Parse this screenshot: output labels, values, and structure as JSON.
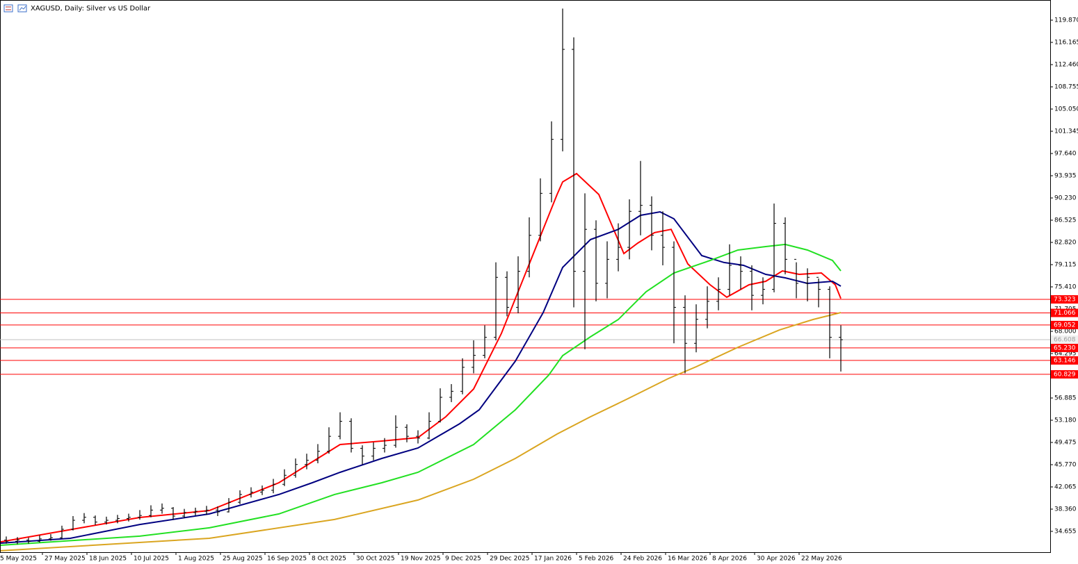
{
  "chart_data": {
    "type": "ohlc",
    "title": "XAGUSD, Daily:  Silver vs US Dollar",
    "bar_color": "#000000",
    "x": [
      3,
      7,
      11,
      15,
      19,
      23,
      27,
      31,
      35,
      39,
      43,
      47,
      51,
      55,
      59,
      63,
      67,
      71,
      75,
      79,
      83,
      87,
      91,
      95,
      99,
      103,
      107,
      111,
      115,
      119,
      123,
      127,
      131,
      135,
      139,
      143,
      147,
      151,
      155,
      159,
      163,
      167,
      171,
      175,
      179,
      183,
      187,
      191,
      195,
      199,
      203,
      207,
      211,
      215,
      219,
      223,
      227,
      231,
      235,
      239,
      243,
      247,
      251,
      255,
      259,
      263,
      267,
      271,
      275,
      279,
      283,
      287,
      291,
      295,
      299,
      303
    ],
    "open": [
      33.2,
      33.0,
      33.2,
      33.0,
      33.4,
      33.6,
      35.0,
      36.5,
      37.0,
      36.2,
      36.5,
      36.8,
      37.0,
      37.3,
      38.2,
      38.5,
      37.2,
      37.8,
      38.0,
      38.2,
      37.9,
      39.5,
      40.8,
      41.2,
      41.5,
      42.5,
      44.0,
      45.8,
      46.5,
      48.0,
      50.5,
      53.0,
      48.5,
      47.2,
      48.5,
      49.0,
      52.0,
      50.5,
      50.2,
      53.0,
      57.0,
      58.0,
      62.0,
      64.0,
      67.0,
      77.0,
      72.0,
      78.0,
      84.0,
      91.0,
      100.0,
      115.0,
      78.0,
      85.0,
      76.0,
      80.0,
      82.0,
      88.0,
      89.0,
      84.0,
      82.0,
      72.0,
      66.0,
      70.0,
      73.0,
      75.0,
      79.0,
      78.0,
      74.0,
      75.0,
      86.0,
      80.0,
      76.0,
      77.0,
      75.0,
      67.0
    ],
    "high": [
      33.8,
      33.7,
      33.6,
      34.0,
      34.2,
      35.6,
      37.2,
      37.7,
      37.3,
      37.1,
      37.4,
      37.6,
      38.2,
      39.0,
      39.3,
      38.7,
      38.4,
      38.6,
      38.9,
      38.8,
      40.2,
      41.5,
      42.0,
      42.3,
      43.4,
      45.0,
      46.8,
      47.6,
      49.2,
      52.0,
      54.5,
      53.5,
      49.0,
      49.5,
      50.2,
      54.0,
      52.5,
      51.5,
      54.5,
      58.5,
      59.2,
      63.5,
      66.5,
      69.0,
      79.5,
      78.0,
      80.5,
      87.0,
      93.5,
      103.0,
      121.8,
      117.0,
      91.0,
      86.5,
      83.0,
      86.0,
      90.0,
      96.4,
      90.5,
      88.0,
      83.0,
      74.0,
      72.5,
      75.5,
      77.0,
      82.5,
      80.5,
      79.0,
      77.0,
      89.3,
      87.0,
      79.5,
      78.5,
      76.8,
      75.5,
      69.0
    ],
    "low": [
      32.6,
      32.5,
      32.6,
      32.8,
      33.1,
      33.4,
      34.8,
      36.0,
      35.7,
      35.8,
      36.0,
      36.3,
      36.6,
      37.0,
      37.6,
      36.6,
      36.9,
      37.3,
      37.4,
      37.2,
      37.8,
      39.2,
      40.3,
      40.7,
      41.0,
      42.2,
      43.6,
      45.0,
      46.0,
      47.6,
      50.0,
      47.8,
      45.8,
      46.5,
      47.8,
      48.6,
      49.5,
      49.3,
      50.0,
      52.8,
      56.2,
      57.5,
      61.0,
      63.5,
      66.5,
      70.5,
      71.0,
      77.0,
      83.0,
      89.5,
      98.0,
      72.0,
      65.0,
      73.0,
      73.5,
      78.0,
      80.0,
      84.0,
      81.5,
      79.0,
      66.0,
      61.0,
      64.5,
      68.5,
      71.5,
      74.0,
      75.0,
      71.5,
      72.5,
      74.5,
      77.5,
      73.5,
      73.0,
      72.0,
      63.5,
      61.3
    ],
    "close": [
      33.0,
      33.2,
      33.0,
      33.4,
      33.6,
      35.0,
      36.5,
      37.0,
      36.2,
      36.5,
      36.8,
      37.0,
      37.3,
      38.2,
      38.5,
      37.2,
      37.8,
      38.0,
      38.2,
      37.9,
      39.5,
      40.8,
      41.2,
      41.5,
      42.5,
      44.0,
      45.8,
      46.5,
      48.0,
      50.5,
      53.0,
      48.5,
      47.2,
      48.5,
      49.0,
      52.0,
      50.5,
      50.2,
      53.0,
      57.0,
      58.0,
      62.0,
      64.0,
      67.0,
      77.0,
      72.0,
      78.0,
      84.0,
      91.0,
      100.0,
      115.0,
      78.0,
      85.0,
      76.0,
      80.0,
      82.0,
      88.0,
      89.0,
      84.0,
      82.0,
      72.0,
      66.0,
      70.0,
      73.0,
      75.0,
      79.0,
      78.0,
      74.0,
      75.0,
      86.0,
      80.0,
      76.0,
      77.0,
      75.0,
      67.0,
      66.6
    ],
    "overlays": [
      {
        "color": "#ff0000",
        "x": [
          1,
          51,
          76,
          101,
          111,
          123,
          138,
          151,
          161,
          171,
          181,
          191,
          201,
          203,
          208,
          216,
          225,
          230,
          236,
          242,
          248,
          256,
          262,
          270,
          276,
          282,
          288,
          296,
          301,
          303
        ],
        "values": [
          32.9,
          36.97,
          38.13,
          42.76,
          45.66,
          49.13,
          49.71,
          50.29,
          53.76,
          58.39,
          67.66,
          79.23,
          90.81,
          92.9,
          94.29,
          90.81,
          80.97,
          82.71,
          84.45,
          85.0,
          79.23,
          75.76,
          73.68,
          75.76,
          76.34,
          78.07,
          77.5,
          77.73,
          75.76,
          73.45
        ]
      },
      {
        "color": "#000080",
        "x": [
          1,
          26,
          51,
          76,
          101,
          113,
          123,
          138,
          151,
          166,
          173,
          186,
          196,
          203,
          213,
          223,
          231,
          238,
          243,
          253,
          261,
          268,
          276,
          283,
          291,
          300,
          303
        ],
        "values": [
          32.69,
          33.5,
          35.8,
          37.56,
          40.8,
          42.76,
          44.5,
          46.81,
          48.55,
          52.6,
          54.92,
          63.03,
          71.13,
          78.65,
          83.29,
          85.0,
          87.34,
          87.92,
          86.76,
          80.62,
          79.47,
          79.0,
          77.5,
          76.92,
          75.99,
          76.34,
          75.53
        ]
      },
      {
        "color": "#22e022",
        "x": [
          1,
          51,
          76,
          101,
          121,
          138,
          151,
          171,
          186,
          198,
          203,
          213,
          223,
          233,
          243,
          256,
          266,
          276,
          283,
          291,
          300,
          303
        ],
        "values": [
          32.34,
          33.85,
          35.24,
          37.56,
          40.8,
          42.76,
          44.5,
          49.13,
          54.92,
          60.71,
          63.95,
          67.08,
          69.97,
          74.6,
          77.73,
          79.81,
          81.55,
          82.13,
          82.48,
          81.55,
          79.81,
          78.07
        ]
      },
      {
        "color": "#daa520",
        "x": [
          1,
          76,
          121,
          151,
          171,
          186,
          201,
          213,
          226,
          241,
          251,
          266,
          281,
          293,
          303
        ],
        "values": [
          31.42,
          33.5,
          36.63,
          39.87,
          43.34,
          46.81,
          50.87,
          53.76,
          56.66,
          60.13,
          62.1,
          65.34,
          68.24,
          69.97,
          71.13
        ]
      }
    ],
    "levels": {
      "color": "#ff0000",
      "values": [
        73.323,
        71.066,
        69.052,
        {
          "value": 65.23,
          "label": "65.230"
        },
        63.146,
        60.829
      ]
    },
    "current_price": {
      "color": "#c0c0c0",
      "value": 66.608
    },
    "xlim": [
      0.75,
      378.25
    ],
    "xticks": [
      {
        "value": 0,
        "label": "5 May 2025"
      },
      {
        "value": 16,
        "label": "27 May 2025"
      },
      {
        "value": 32,
        "label": "18 Jun 2025"
      },
      {
        "value": 48,
        "label": "10 Jul 2025"
      },
      {
        "value": 64,
        "label": "1 Aug 2025"
      },
      {
        "value": 80,
        "label": "25 Aug 2025"
      },
      {
        "value": 96,
        "label": "16 Sep 2025"
      },
      {
        "value": 112,
        "label": "8 Oct 2025"
      },
      {
        "value": 128,
        "label": "30 Oct 2025"
      },
      {
        "value": 144,
        "label": "19 Nov 2025"
      },
      {
        "value": 160,
        "label": "9 Dec 2025"
      },
      {
        "value": 176,
        "label": "29 Dec 2025"
      },
      {
        "value": 192,
        "label": "17 Jan 2026"
      },
      {
        "value": 208,
        "label": "5 Feb 2026"
      },
      {
        "value": 224,
        "label": "24 Feb 2026"
      },
      {
        "value": 240,
        "label": "16 Mar 2026"
      },
      {
        "value": 256,
        "label": "8 Apr 2026"
      },
      {
        "value": 272,
        "label": "30 Apr 2026"
      },
      {
        "value": 288,
        "label": "22 May 2026"
      }
    ],
    "ylim": [
      31.18,
      123.23
    ],
    "yticks": [
      34.655,
      {
        "value": 38.36,
        "label": "38.360"
      },
      42.065,
      {
        "value": 45.77,
        "label": "45.770"
      },
      49.475,
      {
        "value": 53.18,
        "label": "53.180"
      },
      56.885,
      64.295,
      {
        "value": 68,
        "label": "68.000"
      },
      71.705,
      {
        "value": 75.41,
        "label": "75.410"
      },
      79.115,
      {
        "value": 82.82,
        "label": "82.820"
      },
      86.525,
      {
        "value": 90.23,
        "label": "90.230"
      },
      93.935,
      {
        "value": 97.64,
        "label": "97.640"
      },
      101.345,
      {
        "value": 105.05,
        "label": "105.050"
      },
      108.755,
      {
        "value": 112.46,
        "label": "112.460"
      },
      116.165,
      {
        "value": 119.87,
        "label": "119.870"
      }
    ]
  }
}
